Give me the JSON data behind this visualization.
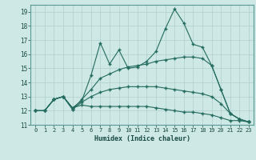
{
  "xlabel": "Humidex (Indice chaleur)",
  "bg_color": "#cde8e5",
  "grid_color": "#b0d0ce",
  "line_color": "#236b5e",
  "xlim": [
    -0.5,
    23.5
  ],
  "ylim": [
    11,
    19.5
  ],
  "xticks": [
    0,
    1,
    2,
    3,
    4,
    5,
    6,
    7,
    8,
    9,
    10,
    11,
    12,
    13,
    14,
    15,
    16,
    17,
    18,
    19,
    20,
    21,
    22,
    23
  ],
  "yticks": [
    11,
    12,
    13,
    14,
    15,
    16,
    17,
    18,
    19
  ],
  "series": [
    [
      12.0,
      12.0,
      12.8,
      13.0,
      12.2,
      12.7,
      14.5,
      16.8,
      15.3,
      16.3,
      15.0,
      15.1,
      15.5,
      16.2,
      17.8,
      19.2,
      18.2,
      16.7,
      16.5,
      15.2,
      13.5,
      11.8,
      11.4,
      11.2
    ],
    [
      12.0,
      12.0,
      12.8,
      13.0,
      12.1,
      12.8,
      13.5,
      14.3,
      14.6,
      14.9,
      15.1,
      15.2,
      15.3,
      15.5,
      15.6,
      15.7,
      15.8,
      15.8,
      15.7,
      15.2,
      13.5,
      11.8,
      11.4,
      11.2
    ],
    [
      12.0,
      12.0,
      12.8,
      13.0,
      12.1,
      12.6,
      13.0,
      13.3,
      13.5,
      13.6,
      13.7,
      13.7,
      13.7,
      13.7,
      13.6,
      13.5,
      13.4,
      13.3,
      13.2,
      13.0,
      12.5,
      11.8,
      11.4,
      11.2
    ],
    [
      12.0,
      12.0,
      12.8,
      13.0,
      12.2,
      12.4,
      12.3,
      12.3,
      12.3,
      12.3,
      12.3,
      12.3,
      12.3,
      12.2,
      12.1,
      12.0,
      11.9,
      11.9,
      11.8,
      11.7,
      11.5,
      11.3,
      11.3,
      11.2
    ]
  ]
}
